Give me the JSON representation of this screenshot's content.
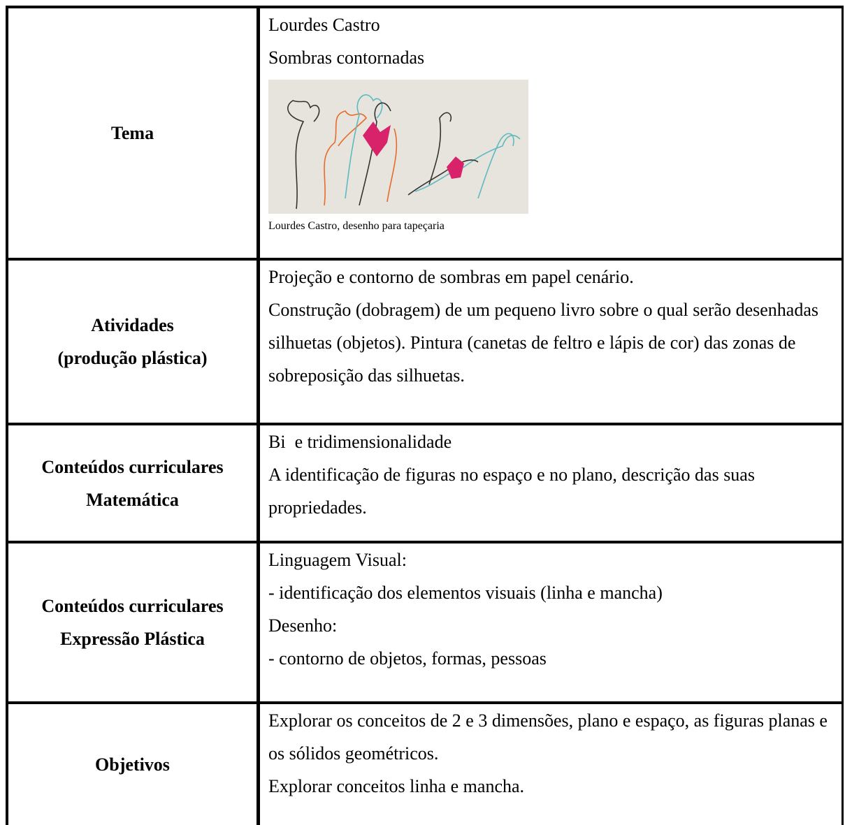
{
  "table": {
    "rows": [
      {
        "label": [
          "Tema"
        ],
        "content": [
          "Lourdes Castro",
          "Sombras contornadas"
        ],
        "caption": "Lourdes Castro, desenho para tapeçaria"
      },
      {
        "label": [
          "Atividades",
          "(produção plástica)"
        ],
        "content": [
          "Projeção e contorno de sombras em papel cenário.",
          "Construção (dobragem) de um pequeno livro sobre o qual serão desenhadas silhuetas (objetos). Pintura (canetas de feltro e lápis de cor) das zonas de sobreposição das silhuetas."
        ]
      },
      {
        "label": [
          "Conteúdos curriculares",
          "Matemática"
        ],
        "content": [
          "Bi  e tridimensionalidade",
          "A identificação de figuras no espaço e no plano, descrição das suas propriedades."
        ]
      },
      {
        "label": [
          "Conteúdos curriculares",
          "Expressão Plástica"
        ],
        "content": [
          "Linguagem Visual:",
          "- identificação dos elementos visuais (linha e mancha)",
          "Desenho:",
          "- contorno de objetos, formas, pessoas"
        ]
      },
      {
        "label": [
          "Objetivos"
        ],
        "content": [
          "Explorar os conceitos de 2 e 3 dimensões, plano e espaço, as figuras planas e os sólidos geométricos.",
          "Explorar conceitos linha e mancha."
        ]
      }
    ]
  }
}
